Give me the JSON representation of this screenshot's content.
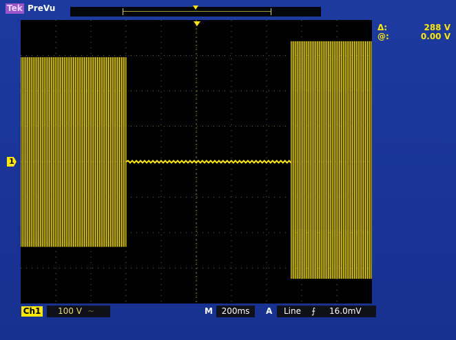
{
  "header": {
    "brand": "Tek",
    "mode": "PreVu"
  },
  "cursors": {
    "delta_symbol": "Δ:",
    "delta_value": "288 V",
    "at_symbol": "@:",
    "at_value": "0.00 V"
  },
  "channel": {
    "ground_marker": "1",
    "label": "Ch1",
    "volts_per_div": "100 V",
    "coupling_glyph": "~"
  },
  "timebase": {
    "prefix": "M",
    "value": "200ms"
  },
  "trigger": {
    "prefix": "A",
    "source": "Line",
    "slope_glyph": "⨍",
    "level": "16.0mV"
  },
  "colors": {
    "background": "#1a3497",
    "graticule": "#000000",
    "trace": "#ffe800",
    "grid": "#6c6a28"
  },
  "chart_data": {
    "type": "line",
    "x_divisions": 10,
    "y_divisions": 8,
    "series": [
      {
        "segments": [
          {
            "x_start": 0.0,
            "x_end": 3.0,
            "upper_div": 2.95,
            "lower_div": -2.4,
            "shade_upper_div": 1.0,
            "shade_lower_div": -2.2
          },
          {
            "x_start": 3.0,
            "x_end": 7.7,
            "upper_div": 0.05,
            "lower_div": -0.05
          },
          {
            "x_start": 7.7,
            "x_end": 10.0,
            "upper_div": 3.4,
            "lower_div": -3.3,
            "shade_upper_div": 2.0,
            "shade_lower_div": -1.9
          }
        ]
      }
    ]
  }
}
